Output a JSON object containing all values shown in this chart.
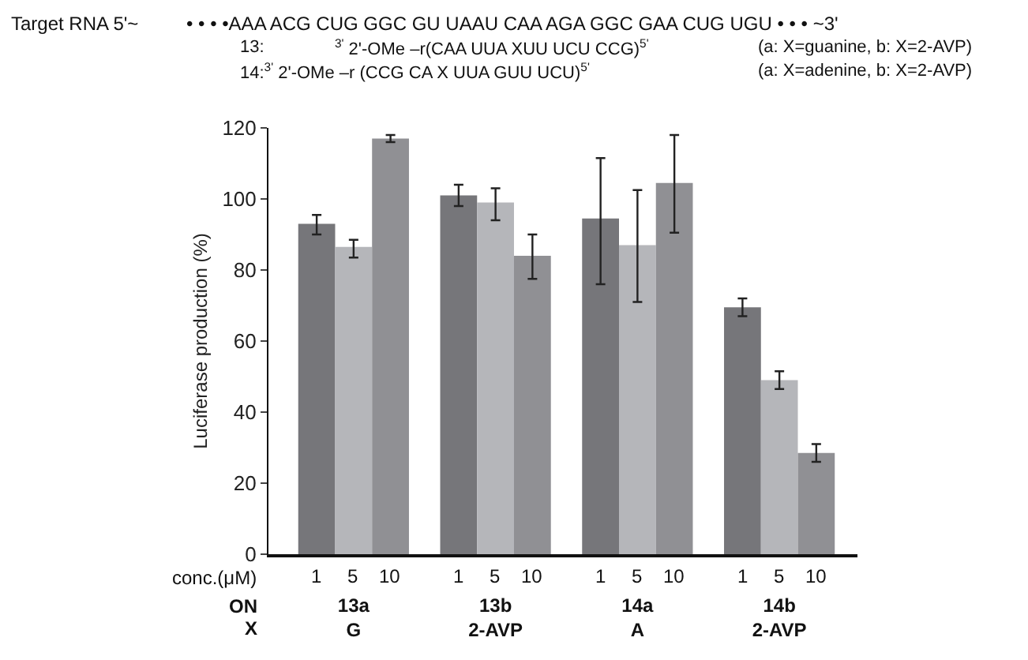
{
  "chart_data": {
    "type": "bar",
    "ylabel": "Luciferase production (%)",
    "categories": [
      "13a\nG",
      "13b\n2-AVP",
      "14a\nA",
      "14b\n2-AVP"
    ],
    "series": [
      {
        "name": "1",
        "color": "#76767a",
        "values": [
          93,
          101,
          94.5,
          69.5
        ],
        "errors": [
          [
            90,
            95.5
          ],
          [
            98,
            104
          ],
          [
            76,
            111.5
          ],
          [
            67,
            72
          ]
        ]
      },
      {
        "name": "5",
        "color": "#b5b6ba",
        "values": [
          86.5,
          99,
          87,
          49
        ],
        "errors": [
          [
            83.5,
            88.5
          ],
          [
            94,
            103
          ],
          [
            71,
            102.5
          ],
          [
            46.5,
            51.5
          ]
        ]
      },
      {
        "name": "10",
        "color": "#909094",
        "values": [
          117,
          84,
          104.5,
          28.5
        ],
        "errors": [
          [
            116,
            118
          ],
          [
            77.5,
            90
          ],
          [
            90.5,
            118
          ],
          [
            26,
            31
          ]
        ]
      }
    ],
    "ylim": [
      0,
      120
    ],
    "yticks": [
      0,
      20,
      40,
      60,
      80,
      100,
      120
    ],
    "annotations": [
      "Target RNA 5'~",
      "• • • •AAA ACG CUG GGC GU UAAU CAA AGA GGC GAA CUG UGU • • • ~3'",
      "13:",
      "$^{3'}$ 2'-OMe –r(CAA UUA XUU UCU CCG)$^{5'}$",
      "(a: X=guanine, b: X=2-AVP)",
      "14:$^{3'}$ 2'-OMe –r (CCG CA X UUA GUU UCU)$^{5'}$",
      "(a: X=adenine, b: X=2-AVP)",
      "conc.(μM)",
      "ON",
      "X"
    ]
  }
}
